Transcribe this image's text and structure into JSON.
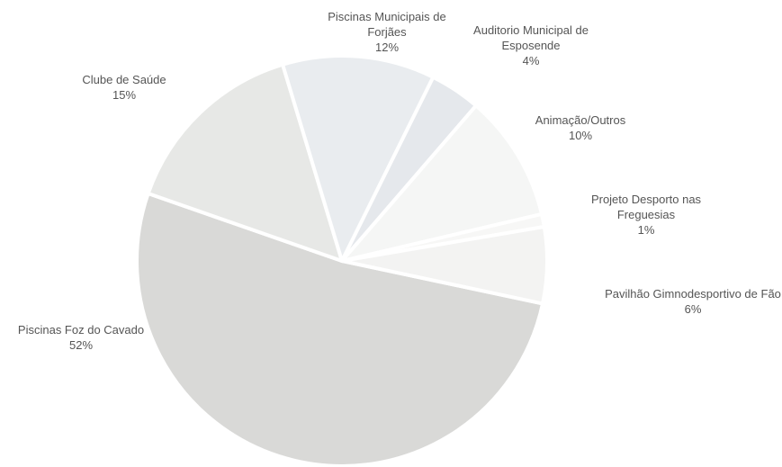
{
  "chart_data": {
    "type": "pie",
    "categories": [
      "Piscinas Foz do Cavado",
      "Clube de Saúde",
      "Piscinas Municipais de Forjães",
      "Auditorio Municipal de Esposende",
      "Animação/Outros",
      "Projeto Desporto nas Freguesias",
      "Pavilhão Gimnodesportivo de Fão"
    ],
    "values": [
      52,
      15,
      12,
      4,
      10,
      1,
      6
    ],
    "value_labels": [
      "52%",
      "15%",
      "12%",
      "4%",
      "10%",
      "1%",
      "6%"
    ],
    "colors": [
      "#d9d9d7",
      "#e7e8e6",
      "#e9ecef",
      "#e5e8ec",
      "#f5f6f5",
      "#f7f7f6",
      "#f3f3f2"
    ]
  }
}
